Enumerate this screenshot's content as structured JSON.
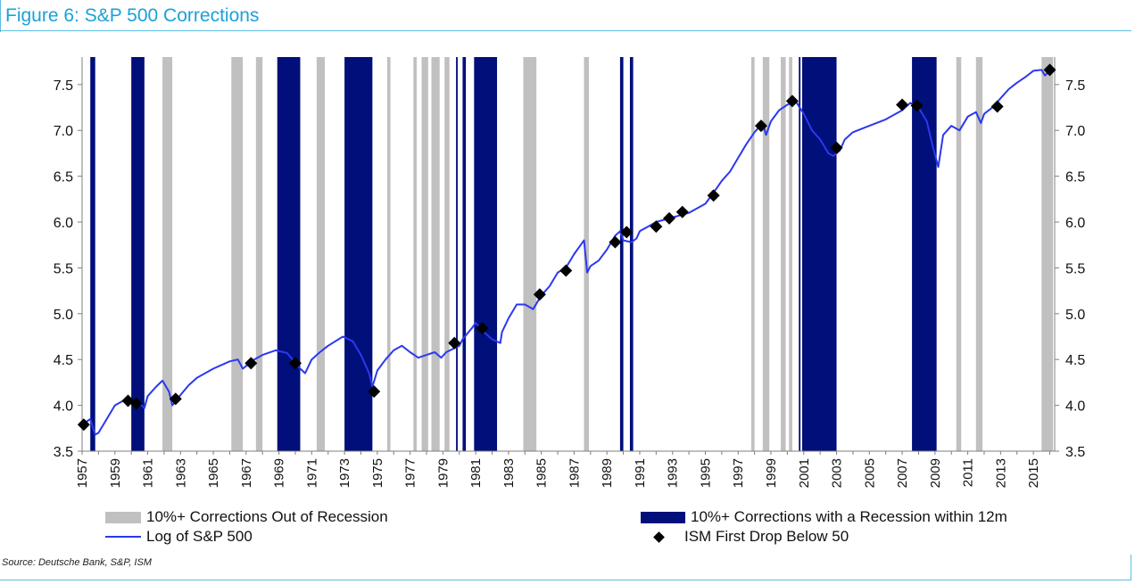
{
  "header": {
    "title": "Figure 6: S&P 500 Corrections"
  },
  "legend": {
    "out_of_recession": "10%+ Corrections Out of Recession",
    "with_recession": "10%+ Corrections with a Recession within 12m",
    "log_sp": "Log of S&P 500",
    "ism": "ISM First Drop Below 50"
  },
  "footer": {
    "source": "Source: Deutsche Bank, S&P, ISM"
  },
  "colors": {
    "gray": "#c0c0c0",
    "navy": "#000f7a",
    "line": "#2b38f0",
    "marker": "#000000",
    "axis": "#7f7f7f",
    "title": "#1ba1d9"
  },
  "chart_data": {
    "type": "line",
    "title": "Figure 6: S&P 500 Corrections",
    "xlim": [
      1957,
      2016.3
    ],
    "ylim": [
      3.5,
      7.8
    ],
    "y_ticks": [
      3.5,
      4.0,
      4.5,
      5.0,
      5.5,
      6.0,
      6.5,
      7.0,
      7.5
    ],
    "x_ticks": [
      1957,
      1959,
      1961,
      1963,
      1965,
      1967,
      1969,
      1971,
      1973,
      1975,
      1977,
      1979,
      1981,
      1983,
      1985,
      1987,
      1989,
      1991,
      1993,
      1995,
      1997,
      1999,
      2001,
      2003,
      2005,
      2007,
      2009,
      2011,
      2013,
      2015
    ],
    "legend_position": "bottom",
    "gray_bands": [
      [
        1961.9,
        1962.5
      ],
      [
        1966.1,
        1966.8
      ],
      [
        1967.6,
        1968.0
      ],
      [
        1971.3,
        1971.8
      ],
      [
        1975.6,
        1975.8
      ],
      [
        1977.2,
        1977.4
      ],
      [
        1977.7,
        1978.1
      ],
      [
        1978.3,
        1978.8
      ],
      [
        1979.1,
        1979.4
      ],
      [
        1983.9,
        1984.7
      ],
      [
        1987.6,
        1987.9
      ],
      [
        1997.8,
        1998.0
      ],
      [
        1998.5,
        1998.9
      ],
      [
        1999.6,
        1999.9
      ],
      [
        2000.1,
        2000.3
      ],
      [
        2010.3,
        2010.6
      ],
      [
        2011.5,
        2011.9
      ],
      [
        2015.5,
        2016.2
      ]
    ],
    "navy_bands": [
      [
        1957.5,
        1957.8
      ],
      [
        1960.0,
        1960.8
      ],
      [
        1968.9,
        1970.3
      ],
      [
        1973.0,
        1974.7
      ],
      [
        1979.8,
        1979.9
      ],
      [
        1980.2,
        1980.4
      ],
      [
        1980.9,
        1982.3
      ],
      [
        1989.8,
        1990.0
      ],
      [
        1990.4,
        1990.6
      ],
      [
        2000.7,
        2000.8
      ],
      [
        2000.9,
        2003.0
      ],
      [
        2007.6,
        2009.1
      ]
    ],
    "series": [
      {
        "name": "Log of S&P 500",
        "x": [
          1957.0,
          1957.5,
          1957.8,
          1958.0,
          1958.5,
          1959.0,
          1959.5,
          1960.0,
          1960.5,
          1960.8,
          1961.0,
          1961.5,
          1961.9,
          1962.3,
          1962.5,
          1962.8,
          1963.5,
          1964.0,
          1965.0,
          1966.0,
          1966.5,
          1966.8,
          1967.5,
          1968.0,
          1968.8,
          1969.5,
          1970.3,
          1970.6,
          1971.0,
          1971.5,
          1972.0,
          1972.9,
          1973.5,
          1974.0,
          1974.5,
          1974.7,
          1975.0,
          1975.5,
          1976.0,
          1976.5,
          1977.0,
          1977.5,
          1978.0,
          1978.5,
          1978.9,
          1979.2,
          1980.0,
          1980.2,
          1980.8,
          1981.0,
          1981.5,
          1982.0,
          1982.5,
          1982.6,
          1983.0,
          1983.5,
          1984.0,
          1984.5,
          1985.0,
          1985.5,
          1986.0,
          1986.5,
          1987.0,
          1987.6,
          1987.8,
          1988.0,
          1988.5,
          1989.0,
          1989.5,
          1989.8,
          1990.0,
          1990.5,
          1990.8,
          1991.0,
          1991.5,
          1992.0,
          1993.0,
          1994.0,
          1994.5,
          1995.0,
          1995.5,
          1996.0,
          1996.5,
          1997.0,
          1997.5,
          1998.0,
          1998.5,
          1998.7,
          1999.0,
          1999.5,
          2000.0,
          2000.5,
          2001.0,
          2001.5,
          2002.0,
          2002.5,
          2002.8,
          2003.2,
          2003.5,
          2004.0,
          2005.0,
          2006.0,
          2007.0,
          2007.5,
          2008.0,
          2008.5,
          2008.9,
          2009.2,
          2009.5,
          2010.0,
          2010.5,
          2011.0,
          2011.5,
          2011.8,
          2012.0,
          2012.5,
          2013.0,
          2013.5,
          2014.0,
          2014.5,
          2015.0,
          2015.5,
          2015.7,
          2016.0
        ],
        "y": [
          3.79,
          3.85,
          3.68,
          3.7,
          3.85,
          4.0,
          4.05,
          4.03,
          4.02,
          3.97,
          4.1,
          4.2,
          4.27,
          4.15,
          4.0,
          4.07,
          4.22,
          4.3,
          4.4,
          4.48,
          4.5,
          4.4,
          4.5,
          4.55,
          4.6,
          4.57,
          4.4,
          4.35,
          4.5,
          4.58,
          4.65,
          4.75,
          4.7,
          4.55,
          4.35,
          4.2,
          4.38,
          4.5,
          4.6,
          4.65,
          4.58,
          4.52,
          4.55,
          4.58,
          4.52,
          4.58,
          4.65,
          4.72,
          4.85,
          4.9,
          4.8,
          4.72,
          4.68,
          4.8,
          4.95,
          5.1,
          5.1,
          5.05,
          5.2,
          5.3,
          5.45,
          5.5,
          5.65,
          5.8,
          5.45,
          5.52,
          5.58,
          5.7,
          5.85,
          5.9,
          5.8,
          5.78,
          5.82,
          5.9,
          5.95,
          6.0,
          6.05,
          6.1,
          6.15,
          6.2,
          6.32,
          6.45,
          6.55,
          6.7,
          6.85,
          6.98,
          7.08,
          6.95,
          7.1,
          7.22,
          7.28,
          7.32,
          7.18,
          7.0,
          6.9,
          6.75,
          6.72,
          6.78,
          6.9,
          6.98,
          7.05,
          7.12,
          7.22,
          7.3,
          7.25,
          7.1,
          6.8,
          6.6,
          6.95,
          7.05,
          7.0,
          7.15,
          7.2,
          7.08,
          7.18,
          7.25,
          7.35,
          7.45,
          7.52,
          7.58,
          7.65,
          7.66,
          7.6,
          7.65
        ]
      },
      {
        "name": "ISM First Drop Below 50",
        "x": [
          1957.1,
          1959.8,
          1960.3,
          1962.7,
          1967.3,
          1970.0,
          1974.8,
          1979.7,
          1981.4,
          1984.9,
          1986.5,
          1989.5,
          1990.2,
          1992.0,
          1992.8,
          1993.6,
          1995.5,
          1998.4,
          2000.3,
          2003.0,
          2007.0,
          2007.9,
          2012.8,
          2016.0
        ],
        "y": [
          3.79,
          4.05,
          4.02,
          4.07,
          4.46,
          4.46,
          4.15,
          4.68,
          4.84,
          5.21,
          5.47,
          5.78,
          5.89,
          5.95,
          6.04,
          6.11,
          6.29,
          7.05,
          7.32,
          6.81,
          7.28,
          7.27,
          7.26,
          7.66
        ]
      }
    ]
  }
}
